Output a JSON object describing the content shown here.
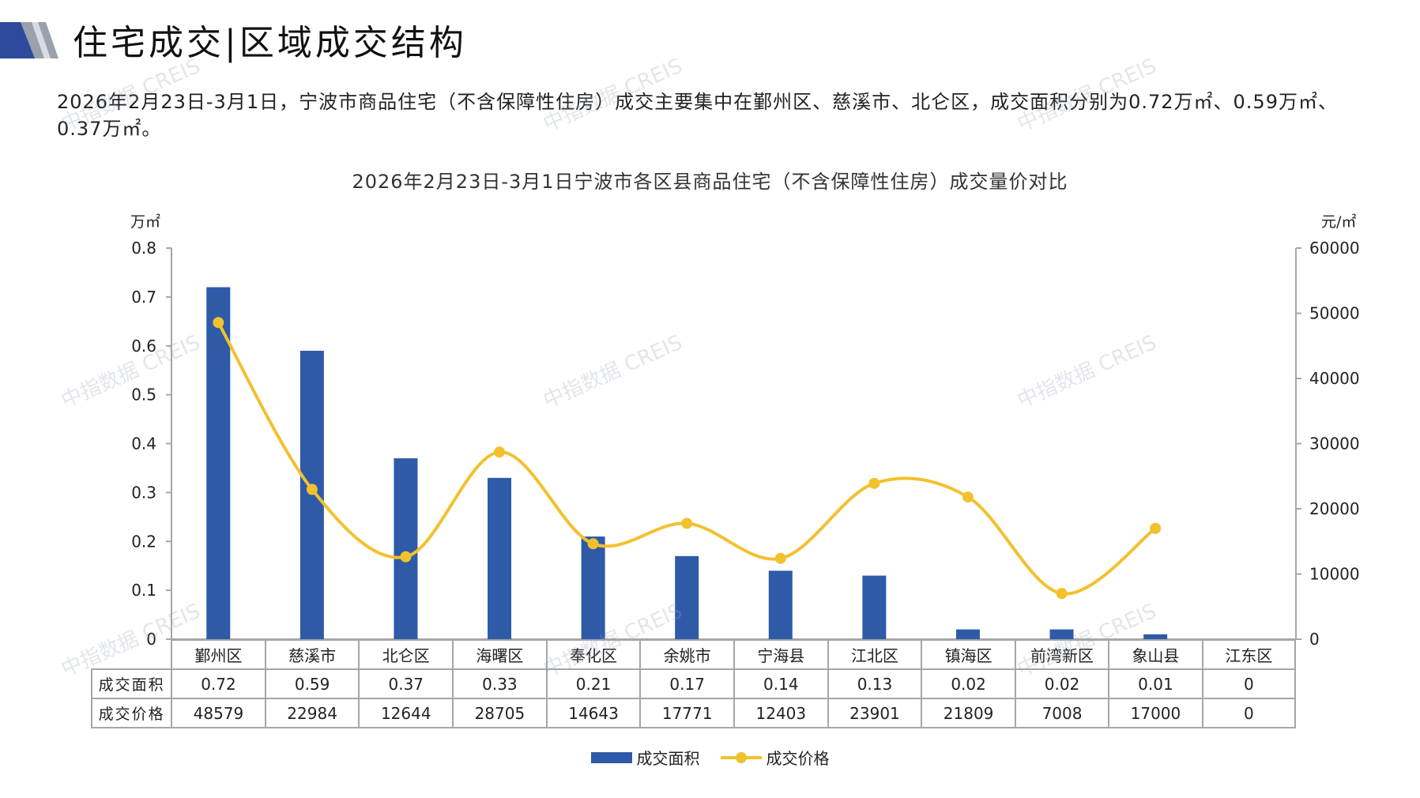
{
  "header": {
    "title": "住宅成交|区域成交结构"
  },
  "summary_text": "2026年2月23日-3月1日，宁波市商品住宅（不含保障性住房）成交主要集中在鄞州区、慈溪市、北仑区，成交面积分别为0.72万㎡、0.59万㎡、0.37万㎡。",
  "watermark_text": "中指数据 CREIS",
  "colors": {
    "bar": "#2e5aa8",
    "line": "#f2c12e",
    "axis": "#a6a6a6"
  },
  "chart_data": {
    "type": "bar",
    "title": "2026年2月23日-3月1日宁波市各区县商品住宅（不含保障性住房）成交量价对比",
    "categories": [
      "鄞州区",
      "慈溪市",
      "北仑区",
      "海曙区",
      "奉化区",
      "余姚市",
      "宁海县",
      "江北区",
      "镇海区",
      "前湾新区",
      "象山县",
      "江东区"
    ],
    "series": [
      {
        "name": "成交面积",
        "type": "bar",
        "axis": "left",
        "values": [
          0.72,
          0.59,
          0.37,
          0.33,
          0.21,
          0.17,
          0.14,
          0.13,
          0.02,
          0.02,
          0.01,
          0
        ]
      },
      {
        "name": "成交价格",
        "type": "line",
        "axis": "right",
        "values": [
          48579,
          22984,
          12644,
          28705,
          14643,
          17771,
          12403,
          23901,
          21809,
          7008,
          17000,
          0
        ]
      }
    ],
    "ylabel_left": "万㎡",
    "ylabel_right": "元/㎡",
    "ylim_left": [
      0,
      0.8
    ],
    "ylim_right": [
      0,
      60000
    ],
    "yticks_left": [
      "0.8",
      "0.7",
      "0.6",
      "0.5",
      "0.4",
      "0.3",
      "0.2",
      "0.1",
      "0"
    ],
    "yticks_right": [
      "60000",
      "50000",
      "40000",
      "30000",
      "20000",
      "10000",
      "0"
    ],
    "table_rows": [
      {
        "label": "成交面积",
        "cells": [
          "0.72",
          "0.59",
          "0.37",
          "0.33",
          "0.21",
          "0.17",
          "0.14",
          "0.13",
          "0.02",
          "0.02",
          "0.01",
          "0"
        ]
      },
      {
        "label": "成交价格",
        "cells": [
          "48579",
          "22984",
          "12644",
          "28705",
          "14643",
          "17771",
          "12403",
          "23901",
          "21809",
          "7008",
          "17000",
          "0"
        ]
      }
    ],
    "legend": [
      "成交面积",
      "成交价格"
    ],
    "legend_position": "bottom",
    "grid": false
  }
}
